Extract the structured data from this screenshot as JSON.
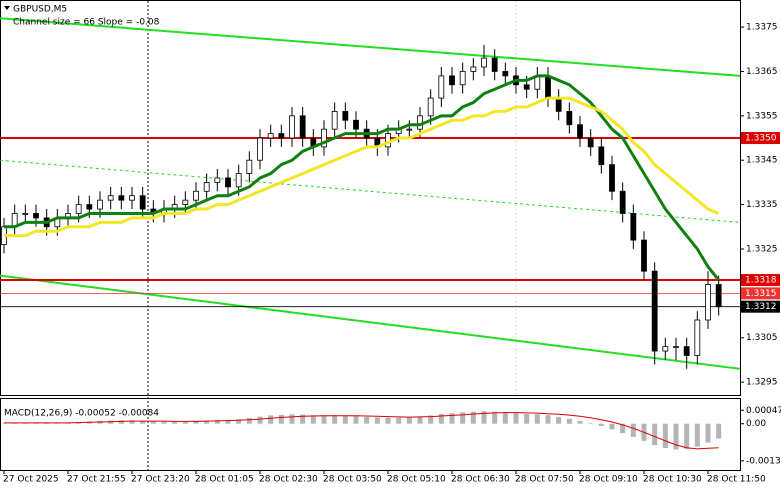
{
  "chart_data": {
    "type": "candlestick",
    "title": "GBPUSD,M5",
    "subtitle": "Channel size = 66 Slope = -0.08",
    "categories": [
      "27 Oct 2025",
      null,
      null,
      null,
      null,
      null,
      "27 Oct 21:55",
      null,
      null,
      null,
      null,
      null,
      "27 Oct 23:20",
      null,
      null,
      null,
      null,
      null,
      "28 Oct 01:05",
      null,
      null,
      null,
      null,
      null,
      "28 Oct 02:30",
      null,
      null,
      null,
      null,
      null,
      "28 Oct 03:50",
      null,
      null,
      null,
      null,
      null,
      "28 Oct 05:10",
      null,
      null,
      null,
      null,
      null,
      "28 Oct 06:30",
      null,
      null,
      null,
      null,
      null,
      "28 Oct 07:50",
      null,
      null,
      null,
      null,
      null,
      "28 Oct 09:10",
      null,
      null,
      null,
      null,
      null,
      "28 Oct 10:30",
      null,
      null,
      null,
      null,
      null,
      "28 Oct 11:50",
      null
    ],
    "open": [
      1.3326,
      1.333,
      1.3333,
      1.3333,
      1.3332,
      1.333,
      1.3332,
      1.3333,
      1.3335,
      1.3334,
      1.3336,
      1.3337,
      1.3336,
      1.3337,
      1.3334,
      1.3333,
      1.3334,
      1.3335,
      1.3336,
      1.3338,
      1.334,
      1.3341,
      1.3339,
      1.3342,
      1.3345,
      1.335,
      1.3351,
      1.335,
      1.3355,
      1.335,
      1.3348,
      1.3352,
      1.3356,
      1.3354,
      1.3352,
      1.335,
      1.3348,
      1.3351,
      1.3352,
      1.3352,
      1.3355,
      1.3359,
      1.3364,
      1.3362,
      1.3365,
      1.3366,
      1.3368,
      1.3365,
      1.3364,
      1.3362,
      1.3361,
      1.3364,
      1.3359,
      1.3356,
      1.3353,
      1.335,
      1.3348,
      1.3344,
      1.3338,
      1.3333,
      1.3327,
      1.332,
      1.3302,
      1.3303,
      1.3303,
      1.3301,
      1.3309,
      1.3317
    ],
    "high": [
      1.3332,
      1.3335,
      1.3335,
      1.3335,
      1.3334,
      1.3334,
      1.3335,
      1.3337,
      1.3337,
      1.3338,
      1.3339,
      1.3339,
      1.3339,
      1.3339,
      1.3336,
      1.3336,
      1.3337,
      1.3338,
      1.334,
      1.3342,
      1.3343,
      1.3343,
      1.3344,
      1.3347,
      1.3352,
      1.3353,
      1.3353,
      1.3357,
      1.3357,
      1.3352,
      1.3354,
      1.3358,
      1.3358,
      1.3356,
      1.3354,
      1.3352,
      1.3353,
      1.3354,
      1.3354,
      1.3357,
      1.3361,
      1.3366,
      1.3366,
      1.3367,
      1.3368,
      1.3371,
      1.337,
      1.3367,
      1.3366,
      1.3364,
      1.3366,
      1.3366,
      1.3361,
      1.3358,
      1.3355,
      1.3352,
      1.335,
      1.3346,
      1.334,
      1.3335,
      1.3329,
      1.3322,
      1.3305,
      1.3305,
      1.3305,
      1.3311,
      1.332,
      1.3319
    ],
    "low": [
      1.3324,
      1.3328,
      1.3331,
      1.333,
      1.3328,
      1.3328,
      1.333,
      1.3331,
      1.3332,
      1.3332,
      1.3334,
      1.3334,
      1.3334,
      1.3332,
      1.3331,
      1.3331,
      1.3332,
      1.3333,
      1.3334,
      1.3336,
      1.3338,
      1.3337,
      1.3337,
      1.334,
      1.3343,
      1.3348,
      1.3348,
      1.3348,
      1.3348,
      1.3346,
      1.3346,
      1.335,
      1.3352,
      1.335,
      1.3348,
      1.3346,
      1.3346,
      1.3349,
      1.335,
      1.335,
      1.3353,
      1.3357,
      1.336,
      1.336,
      1.3363,
      1.3364,
      1.3363,
      1.3362,
      1.336,
      1.3359,
      1.3359,
      1.3357,
      1.3354,
      1.3351,
      1.3348,
      1.3346,
      1.3342,
      1.3336,
      1.3331,
      1.3325,
      1.3318,
      1.3299,
      1.33,
      1.33,
      1.3298,
      1.3299,
      1.3307,
      1.331
    ],
    "close": [
      1.333,
      1.3333,
      1.3333,
      1.3332,
      1.333,
      1.3332,
      1.3333,
      1.3335,
      1.3334,
      1.3336,
      1.3337,
      1.3336,
      1.3337,
      1.3334,
      1.3333,
      1.3334,
      1.3335,
      1.3336,
      1.3338,
      1.334,
      1.3341,
      1.3339,
      1.3342,
      1.3345,
      1.335,
      1.3351,
      1.335,
      1.3355,
      1.335,
      1.3348,
      1.3352,
      1.3356,
      1.3354,
      1.3352,
      1.335,
      1.3348,
      1.3351,
      1.3352,
      1.3352,
      1.3355,
      1.3359,
      1.3364,
      1.3362,
      1.3365,
      1.3366,
      1.3368,
      1.3365,
      1.3364,
      1.3362,
      1.3361,
      1.3364,
      1.3359,
      1.3356,
      1.3353,
      1.335,
      1.3348,
      1.3344,
      1.3338,
      1.3333,
      1.3327,
      1.332,
      1.3302,
      1.3303,
      1.3303,
      1.3301,
      1.3309,
      1.3317,
      1.3312
    ],
    "bull_color": "#ffffff",
    "bear_color": "#000000",
    "ylim": [
      1.32921,
      1.33811
    ],
    "yticks": [
      1.3375,
      1.3365,
      1.3355,
      1.3345,
      1.3335,
      1.3325,
      1.3305,
      1.3295
    ],
    "lines": [
      {
        "color": "#0f7f0f",
        "values": [
          1.333,
          1.333,
          1.3331,
          1.3331,
          1.3331,
          1.3332,
          1.3332,
          1.3332,
          1.3333,
          1.3333,
          1.3333,
          1.3333,
          1.3333,
          1.3333,
          1.3333,
          1.3334,
          1.3334,
          1.3334,
          1.3335,
          1.3336,
          1.3337,
          1.3337,
          1.3338,
          1.3339,
          1.3341,
          1.3342,
          1.3344,
          1.3345,
          1.3347,
          1.3348,
          1.3349,
          1.335,
          1.3351,
          1.3351,
          1.3351,
          1.3351,
          1.3352,
          1.3352,
          1.3353,
          1.3353,
          1.3354,
          1.3355,
          1.3355,
          1.3357,
          1.3358,
          1.336,
          1.3361,
          1.3362,
          1.3363,
          1.3363,
          1.3364,
          1.3364,
          1.3363,
          1.3362,
          1.336,
          1.3358,
          1.3355,
          1.3352,
          1.335,
          1.3346,
          1.3342,
          1.3338,
          1.3334,
          1.3331,
          1.3328,
          1.3325,
          1.3321,
          1.3318
        ]
      },
      {
        "color": "#f2e626",
        "values": [
          1.3328,
          1.3328,
          1.3328,
          1.3329,
          1.3329,
          1.3329,
          1.333,
          1.333,
          1.333,
          1.3331,
          1.3331,
          1.3331,
          1.3332,
          1.3332,
          1.3332,
          1.3333,
          1.3333,
          1.3333,
          1.3334,
          1.3334,
          1.3335,
          1.3335,
          1.3336,
          1.3337,
          1.3338,
          1.3339,
          1.334,
          1.3341,
          1.3342,
          1.3343,
          1.3344,
          1.3345,
          1.3346,
          1.3347,
          1.3348,
          1.3348,
          1.3349,
          1.335,
          1.335,
          1.3351,
          1.3352,
          1.3353,
          1.3354,
          1.3354,
          1.3355,
          1.3355,
          1.3356,
          1.3356,
          1.3357,
          1.3357,
          1.3358,
          1.3359,
          1.3359,
          1.3359,
          1.3358,
          1.3357,
          1.3356,
          1.3354,
          1.3352,
          1.3349,
          1.3347,
          1.3344,
          1.3342,
          1.334,
          1.3338,
          1.3336,
          1.3334,
          1.3333
        ]
      }
    ],
    "channel": {
      "color": "#22dd22",
      "upper": [
        1.3377,
        1.3364
      ],
      "middle": [
        1.3345,
        1.3331
      ],
      "lower": [
        1.3319,
        1.3298
      ]
    },
    "levels": [
      {
        "price": 1.335,
        "label": "1.3350",
        "color": "#dd0000"
      },
      {
        "price": 1.3318,
        "color": "#dd0000"
      },
      {
        "price": 1.3315,
        "color": "#ee3333"
      },
      {
        "price": 1.3312,
        "color": "#000000"
      }
    ],
    "macd": {
      "label": "MACD(12,26,9) -0.00052 -0.00084",
      "hist_color": "#b4b4b4",
      "signal_color": "#dd0000",
      "ylim": [
        -0.00162,
        0.0009
      ],
      "yticks": [
        0.00047,
        {
          "value": 0,
          "label": "0.00"
        },
        -0.0013
      ],
      "histogram": [
        2e-05,
        4e-05,
        3e-05,
        2e-05,
        1e-05,
        2e-05,
        4e-05,
        6e-05,
        8e-05,
        0.0001,
        0.00011,
        0.00012,
        0.00012,
        0.0001,
        8e-05,
        7e-05,
        6e-05,
        7e-05,
        9e-05,
        0.00011,
        0.00013,
        0.00014,
        0.00016,
        0.0002,
        0.00025,
        0.00029,
        0.00031,
        0.00033,
        0.00032,
        0.0003,
        0.00029,
        0.0003,
        0.00029,
        0.00027,
        0.00024,
        0.00022,
        0.00021,
        0.00021,
        0.00022,
        0.00025,
        0.00029,
        0.00034,
        0.00037,
        0.0004,
        0.00042,
        0.00044,
        0.00042,
        0.0004,
        0.00037,
        0.00034,
        0.00033,
        0.0003,
        0.00024,
        0.00017,
        0.0001,
        2e-05,
        -8e-05,
        -0.0002,
        -0.00033,
        -0.00046,
        -0.0006,
        -0.00075,
        -0.00085,
        -0.0009,
        -0.00088,
        -0.0008,
        -0.00066,
        -0.00052
      ],
      "signal": [
        3e-05,
        3e-05,
        3e-05,
        3e-05,
        3e-05,
        3e-05,
        3e-05,
        4e-05,
        5e-05,
        6e-05,
        7e-05,
        8e-05,
        9e-05,
        9e-05,
        9e-05,
        9e-05,
        8e-05,
        8e-05,
        8e-05,
        9e-05,
        0.0001,
        0.00011,
        0.00012,
        0.00014,
        0.00016,
        0.00019,
        0.00022,
        0.00024,
        0.00026,
        0.00027,
        0.00028,
        0.00028,
        0.00028,
        0.00028,
        0.00027,
        0.00026,
        0.00025,
        0.00024,
        0.00023,
        0.00024,
        0.00025,
        0.00027,
        0.00029,
        0.00031,
        0.00034,
        0.00036,
        0.00038,
        0.00039,
        0.00039,
        0.00038,
        0.00037,
        0.00035,
        0.00033,
        0.0003,
        0.00026,
        0.00021,
        0.00014,
        6e-05,
        -4e-05,
        -0.00016,
        -0.0003,
        -0.00045,
        -0.0006,
        -0.00074,
        -0.00084,
        -0.00088,
        -0.00086,
        -0.00084
      ]
    }
  }
}
